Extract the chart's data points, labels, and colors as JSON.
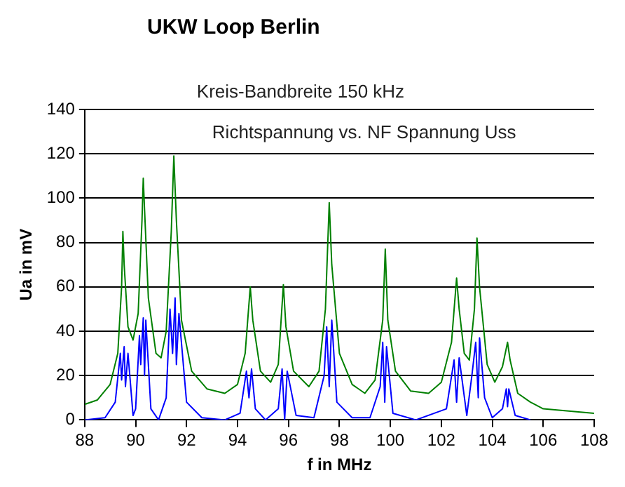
{
  "chart_data": {
    "type": "line",
    "title": "UKW Loop Berlin",
    "xlabel": "f in MHz",
    "ylabel": "Ua in mV",
    "annotations": [
      "Kreis-Bandbreite 150 kHz",
      "Richtspannung vs. NF Spannung Uss"
    ],
    "xlim": [
      88,
      108
    ],
    "xticks": [
      88,
      90,
      92,
      94,
      96,
      98,
      100,
      102,
      104,
      106,
      108
    ],
    "ylim": [
      0,
      140
    ],
    "yticks": [
      0,
      20,
      40,
      60,
      80,
      100,
      120,
      140
    ],
    "grid": "y",
    "legend": false,
    "marker": "none",
    "line_style": "solid",
    "series": [
      {
        "color": "#008000",
        "x": [
          88,
          88.5,
          89,
          89.3,
          89.45,
          89.5,
          89.55,
          89.7,
          89.9,
          90.1,
          90.25,
          90.3,
          90.35,
          90.5,
          90.8,
          91,
          91.2,
          91.4,
          91.5,
          91.6,
          91.8,
          92.2,
          92.8,
          93.5,
          94,
          94.3,
          94.5,
          94.6,
          94.9,
          95.3,
          95.6,
          95.8,
          95.9,
          96.2,
          96.8,
          97.2,
          97.45,
          97.6,
          97.7,
          98,
          98.5,
          99,
          99.4,
          99.7,
          99.8,
          99.9,
          100.2,
          100.8,
          101.5,
          102,
          102.4,
          102.6,
          102.7,
          102.9,
          103.1,
          103.3,
          103.4,
          103.5,
          103.8,
          104.1,
          104.4,
          104.6,
          104.7,
          105,
          105.5,
          106,
          107,
          108
        ],
        "values": [
          7,
          9,
          16,
          30,
          60,
          85,
          70,
          42,
          36,
          48,
          90,
          109,
          95,
          55,
          30,
          28,
          40,
          85,
          119,
          90,
          45,
          22,
          14,
          12,
          16,
          30,
          60,
          45,
          22,
          17,
          25,
          61,
          42,
          22,
          15,
          22,
          50,
          98,
          70,
          30,
          16,
          12,
          18,
          45,
          77,
          45,
          22,
          13,
          12,
          17,
          35,
          64,
          50,
          30,
          27,
          50,
          82,
          60,
          25,
          17,
          24,
          35,
          27,
          12,
          8,
          5,
          4,
          3
        ]
      },
      {
        "color": "#0000ff",
        "x": [
          88,
          88.8,
          89.2,
          89.4,
          89.45,
          89.55,
          89.6,
          89.7,
          89.9,
          90,
          90.15,
          90.2,
          90.3,
          90.35,
          90.4,
          90.6,
          90.9,
          91.2,
          91.35,
          91.45,
          91.55,
          91.6,
          91.7,
          92,
          92.6,
          93.5,
          94.1,
          94.35,
          94.45,
          94.55,
          94.7,
          95.1,
          95.6,
          95.75,
          95.85,
          95.95,
          96.3,
          97,
          97.4,
          97.5,
          97.6,
          97.7,
          97.9,
          98.5,
          99.2,
          99.6,
          99.7,
          99.78,
          99.85,
          100.1,
          101,
          102.2,
          102.5,
          102.6,
          102.7,
          103,
          103.2,
          103.35,
          103.45,
          103.5,
          103.7,
          104,
          104.4,
          104.55,
          104.6,
          104.65,
          104.9,
          105.5
        ],
        "values": [
          0,
          1,
          8,
          30,
          18,
          33,
          15,
          30,
          2,
          5,
          38,
          25,
          46,
          20,
          45,
          5,
          0,
          10,
          50,
          30,
          55,
          25,
          48,
          8,
          1,
          0,
          3,
          22,
          10,
          23,
          5,
          0,
          5,
          23,
          0,
          22,
          2,
          1,
          20,
          42,
          15,
          45,
          8,
          1,
          1,
          15,
          35,
          8,
          33,
          3,
          0,
          5,
          27,
          8,
          28,
          2,
          20,
          35,
          10,
          37,
          10,
          1,
          5,
          14,
          6,
          14,
          2,
          0
        ]
      }
    ]
  }
}
